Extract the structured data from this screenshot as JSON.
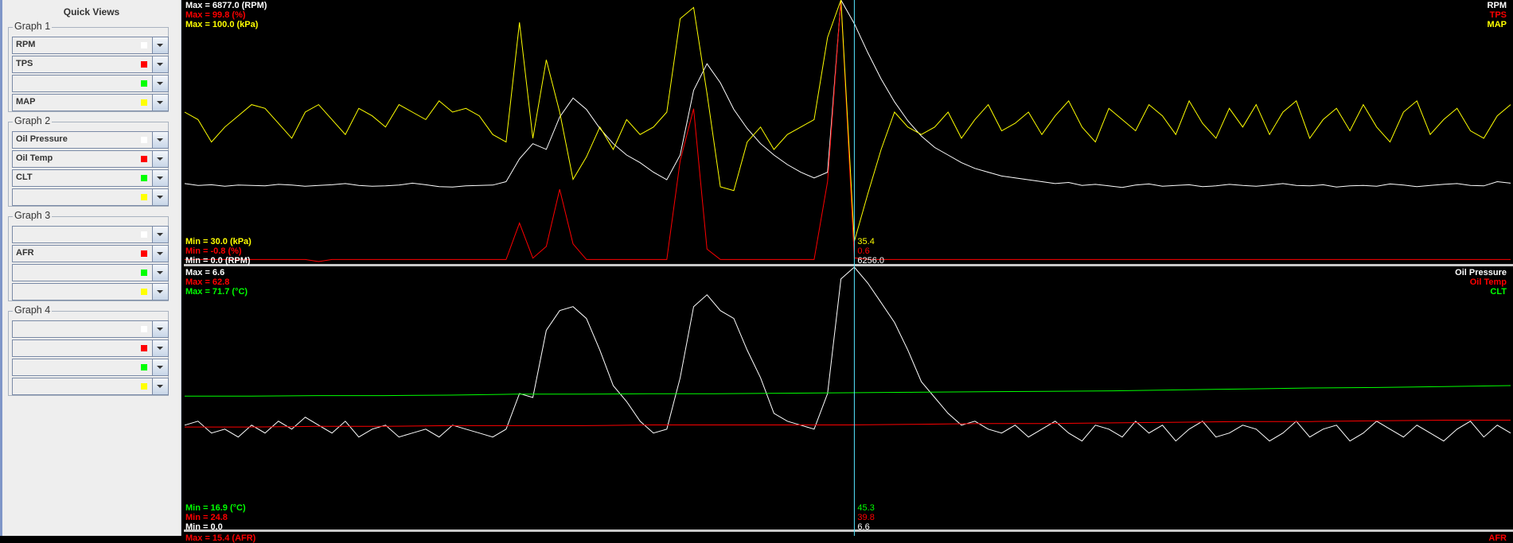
{
  "sidebar": {
    "title": "Quick Views",
    "groups": [
      {
        "label": "Graph 1",
        "rows": [
          {
            "value": "RPM",
            "color": "#ffffff"
          },
          {
            "value": "TPS",
            "color": "#ff0000"
          },
          {
            "value": "",
            "color": "#00ff00"
          },
          {
            "value": "MAP",
            "color": "#ffff00"
          }
        ]
      },
      {
        "label": "Graph 2",
        "rows": [
          {
            "value": "Oil Pressure",
            "color": "#ffffff"
          },
          {
            "value": "Oil Temp",
            "color": "#ff0000"
          },
          {
            "value": "CLT",
            "color": "#00ff00"
          },
          {
            "value": "",
            "color": "#ffff00"
          }
        ]
      },
      {
        "label": "Graph 3",
        "rows": [
          {
            "value": "",
            "color": "#ffffff"
          },
          {
            "value": "AFR",
            "color": "#ff0000"
          },
          {
            "value": "",
            "color": "#00ff00"
          },
          {
            "value": "",
            "color": "#ffff00"
          }
        ]
      },
      {
        "label": "Graph 4",
        "rows": [
          {
            "value": "",
            "color": "#ffffff"
          },
          {
            "value": "",
            "color": "#ff0000"
          },
          {
            "value": "",
            "color": "#00ff00"
          },
          {
            "value": "",
            "color": "#ffff00"
          }
        ]
      }
    ]
  },
  "cursor": {
    "index": 50,
    "color": "#55e6ff"
  },
  "chart_data": [
    {
      "type": "line",
      "grid": false,
      "legend": "top-right",
      "series": [
        {
          "name": "RPM",
          "color": "#ffffff",
          "min_label": "Min = 0.0 (RPM)",
          "max_label": "Max = 6877.0 (RPM)",
          "min": 0,
          "max": 6877,
          "cursor_value": "6256.0",
          "values": [
            2050,
            2000,
            2020,
            1980,
            2010,
            2000,
            1990,
            2030,
            2010,
            1980,
            2000,
            2020,
            2050,
            2000,
            1980,
            1990,
            2010,
            2060,
            2020,
            1970,
            1960,
            1990,
            2000,
            2010,
            2100,
            2700,
            3100,
            2950,
            3800,
            4300,
            4000,
            3500,
            3100,
            2800,
            2600,
            2350,
            2150,
            2800,
            4500,
            5200,
            4700,
            4000,
            3500,
            3100,
            2800,
            2550,
            2350,
            2200,
            2350,
            6877,
            6256,
            5500,
            4800,
            4200,
            3700,
            3300,
            3000,
            2800,
            2600,
            2450,
            2350,
            2250,
            2200,
            2150,
            2100,
            2050,
            2080,
            2000,
            2030,
            1990,
            1950,
            2010,
            2040,
            1980,
            2000,
            2020,
            1970,
            1990,
            2030,
            2000,
            1980,
            2010,
            2050,
            2000,
            1990,
            2020,
            1960,
            1990,
            2000,
            1980,
            2040,
            2010,
            1970,
            2000,
            2030,
            2050,
            2000,
            1990,
            2100,
            2060
          ]
        },
        {
          "name": "TPS",
          "color": "#ff0000",
          "min_label": "Min = -0.8 (%)",
          "max_label": "Max = 99.8 (%)",
          "min": -0.8,
          "max": 99.8,
          "cursor_value": "0.6",
          "values": [
            0,
            0,
            0,
            0,
            0,
            0,
            0,
            0,
            0,
            0,
            -0.8,
            0,
            0,
            0,
            0,
            0,
            0,
            0,
            0,
            0,
            0,
            0,
            0,
            0,
            0,
            14,
            0.5,
            5,
            27,
            6,
            0,
            0,
            0,
            0,
            0,
            0,
            0,
            38,
            58,
            4,
            0,
            0,
            0,
            0,
            0,
            0,
            0,
            0,
            30,
            99.8,
            0.6,
            0,
            0,
            0,
            0,
            0,
            0,
            0,
            0,
            0,
            0,
            0,
            0,
            0,
            0,
            0,
            0,
            0,
            0,
            0,
            0,
            0,
            0,
            0,
            0,
            0,
            0,
            0,
            0,
            0,
            0,
            0,
            0,
            0,
            0,
            0,
            0,
            0,
            0,
            0,
            0,
            0,
            0,
            0,
            0,
            0,
            0,
            0,
            0,
            0
          ]
        },
        {
          "name": "MAP",
          "color": "#ffff00",
          "min_label": "Min = 30.0 (kPa)",
          "max_label": "Max = 100.0 (kPa)",
          "min": 30,
          "max": 100,
          "cursor_value": "35.4",
          "values": [
            70,
            68,
            62,
            66,
            69,
            72,
            71,
            67,
            63,
            70,
            72,
            68,
            64,
            71,
            69,
            66,
            72,
            70,
            68,
            73,
            70,
            71,
            69,
            64,
            62,
            94,
            63,
            84,
            70,
            52,
            58,
            66,
            60,
            68,
            64,
            66,
            70,
            95,
            98,
            75,
            50,
            49,
            62,
            66,
            60,
            64,
            66,
            68,
            90,
            100,
            35.4,
            48,
            60,
            70,
            66,
            64,
            66,
            70,
            63,
            68,
            72,
            65,
            67,
            70,
            64,
            69,
            73,
            66,
            62,
            71,
            68,
            65,
            72,
            69,
            64,
            73,
            67,
            63,
            71,
            66,
            72,
            64,
            70,
            73,
            63,
            68,
            71,
            65,
            72,
            66,
            62,
            70,
            73,
            64,
            68,
            71,
            65,
            63,
            69,
            72
          ]
        }
      ]
    },
    {
      "type": "line",
      "grid": false,
      "legend": "top-right",
      "series": [
        {
          "name": "Oil Pressure",
          "color": "#ffffff",
          "min_label": "Min = 0.0",
          "max_label": "Max = 6.6",
          "min": 0,
          "max": 6.6,
          "cursor_value": "6.6",
          "values": [
            2.6,
            2.7,
            2.4,
            2.5,
            2.3,
            2.6,
            2.4,
            2.7,
            2.5,
            2.8,
            2.6,
            2.4,
            2.7,
            2.3,
            2.5,
            2.6,
            2.3,
            2.4,
            2.5,
            2.3,
            2.6,
            2.5,
            2.4,
            2.3,
            2.5,
            3.4,
            3.3,
            5.0,
            5.5,
            5.6,
            5.3,
            4.5,
            3.6,
            3.2,
            2.7,
            2.4,
            2.5,
            3.8,
            5.6,
            5.9,
            5.5,
            5.3,
            4.5,
            3.8,
            2.9,
            2.7,
            2.6,
            2.5,
            3.4,
            6.3,
            6.6,
            6.2,
            5.7,
            5.2,
            4.5,
            3.7,
            3.3,
            2.9,
            2.6,
            2.7,
            2.5,
            2.4,
            2.6,
            2.3,
            2.5,
            2.7,
            2.4,
            2.2,
            2.6,
            2.5,
            2.3,
            2.7,
            2.4,
            2.6,
            2.2,
            2.5,
            2.7,
            2.3,
            2.4,
            2.6,
            2.5,
            2.2,
            2.4,
            2.7,
            2.3,
            2.5,
            2.6,
            2.2,
            2.4,
            2.7,
            2.5,
            2.3,
            2.6,
            2.4,
            2.2,
            2.5,
            2.7,
            2.3,
            2.6,
            2.4
          ]
        },
        {
          "name": "Oil Temp",
          "color": "#ff0000",
          "min_label": "Min = 24.8",
          "max_label": "Max = 62.8",
          "min": 24.8,
          "max": 62.8,
          "cursor_value": "39.8",
          "values": [
            39.5,
            39.5,
            39.6,
            39.6,
            39.7,
            39.7,
            39.7,
            39.8,
            39.8,
            39.8,
            39.8,
            39.9,
            40.0,
            40.0,
            40.1,
            40.2,
            40.3,
            40.3,
            40.4,
            40.5,
            40.5
          ]
        },
        {
          "name": "CLT",
          "color": "#00ff00",
          "min_label": "Min = 16.9 (°C)",
          "max_label": "Max = 71.7 (°C)",
          "min": 16.9,
          "max": 71.7,
          "cursor_value": "45.3",
          "values": [
            44.6,
            44.6,
            44.7,
            44.7,
            44.8,
            45.0,
            45.0,
            45.1,
            45.1,
            45.2,
            45.3,
            45.4,
            45.5,
            45.6,
            45.7,
            45.9,
            46.1,
            46.3,
            46.4,
            46.6,
            46.8
          ]
        }
      ]
    },
    {
      "type": "line",
      "series": [
        {
          "name": "AFR",
          "color": "#ff0000",
          "max_label": "Max = 15.4 (AFR)"
        }
      ]
    }
  ]
}
